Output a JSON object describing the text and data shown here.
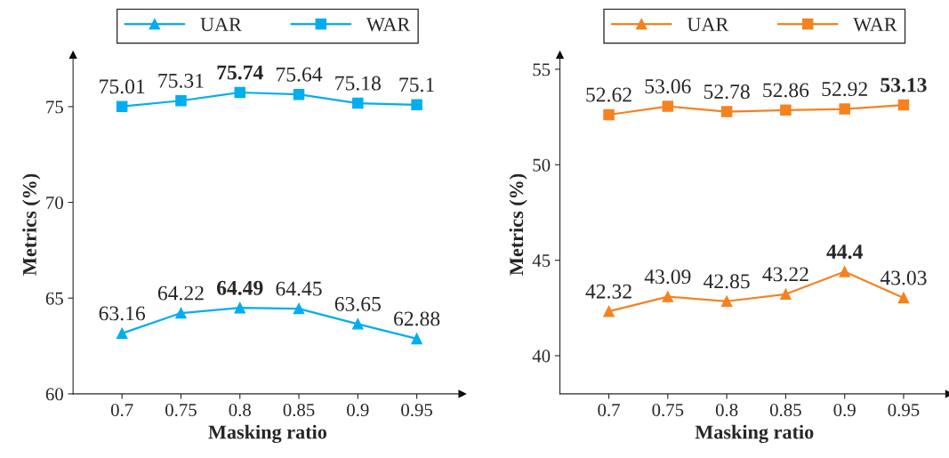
{
  "chart_data": [
    {
      "type": "line",
      "xlabel": "Masking ratio",
      "ylabel": "Metrics (%)",
      "categories": [
        "0.7",
        "0.75",
        "0.8",
        "0.85",
        "0.9",
        "0.95"
      ],
      "ylim": [
        60,
        77.7
      ],
      "yticks": [
        60,
        65,
        70,
        75
      ],
      "legend": "top",
      "data_labels": true,
      "grid": false,
      "series": [
        {
          "name": "UAR",
          "color": "#00aeef",
          "marker": "triangle",
          "values": [
            63.16,
            64.22,
            64.49,
            64.45,
            63.65,
            62.88
          ]
        },
        {
          "name": "WAR",
          "color": "#00aeef",
          "marker": "square",
          "values": [
            75.01,
            75.31,
            75.74,
            75.64,
            75.18,
            75.1
          ]
        }
      ]
    },
    {
      "type": "line",
      "xlabel": "Masking ratio",
      "ylabel": "Metrics (%)",
      "categories": [
        "0.7",
        "0.75",
        "0.8",
        "0.85",
        "0.9",
        "0.95"
      ],
      "ylim": [
        38,
        55.75
      ],
      "yticks": [
        40,
        45,
        50,
        55
      ],
      "legend": "top",
      "data_labels": true,
      "grid": false,
      "series": [
        {
          "name": "UAR",
          "color": "#f58220",
          "marker": "triangle",
          "values": [
            42.32,
            43.09,
            42.85,
            43.22,
            44.4,
            43.03
          ]
        },
        {
          "name": "WAR",
          "color": "#f58220",
          "marker": "square",
          "values": [
            52.62,
            53.06,
            52.78,
            52.86,
            52.92,
            53.13
          ]
        }
      ]
    }
  ]
}
